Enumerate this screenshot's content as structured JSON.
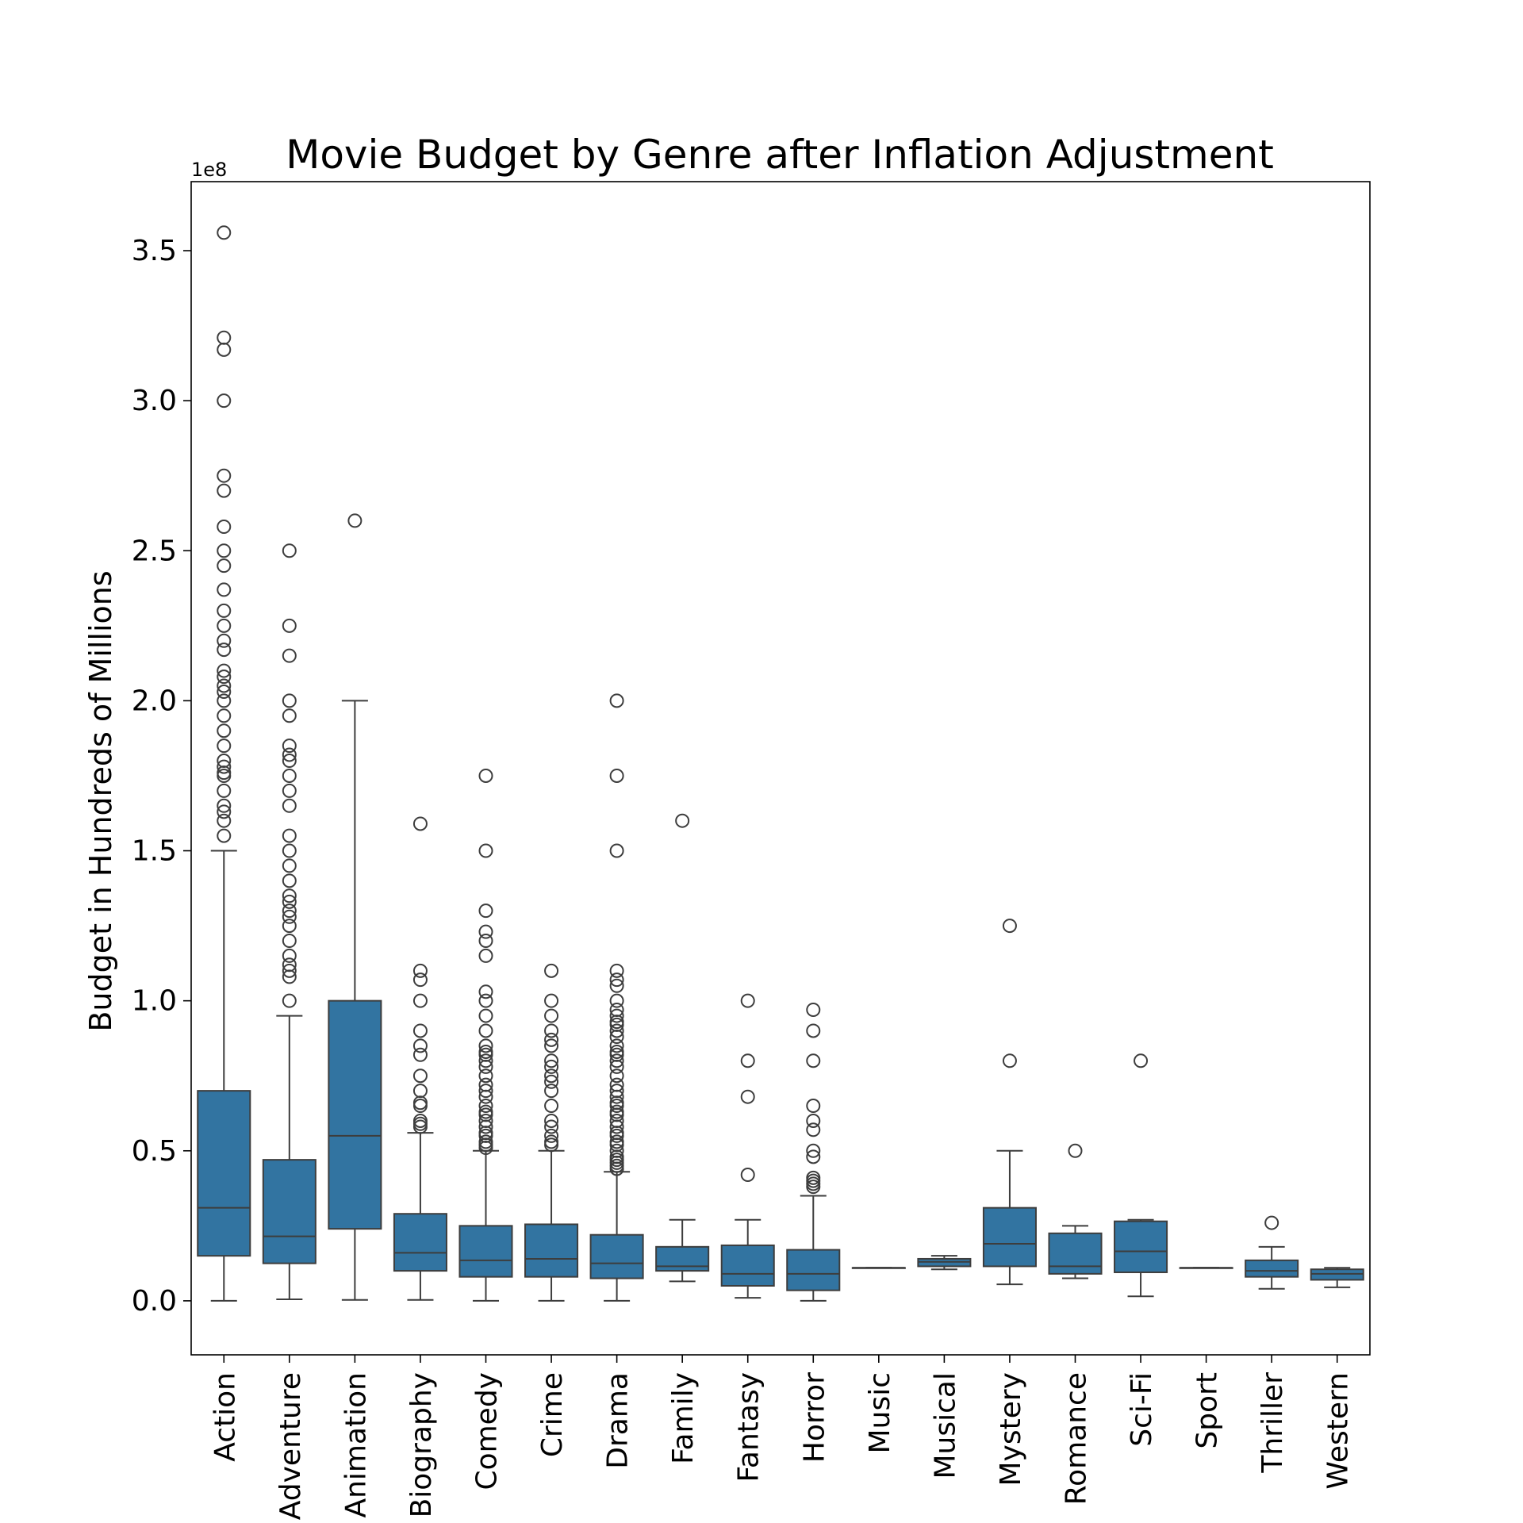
{
  "chart_data": {
    "type": "box",
    "title": "Movie Budget by Genre after Inflation Adjustment",
    "xlabel": "",
    "ylabel": "Budget in Hundreds of Millions",
    "y_offset_label": "1e8",
    "y_scale": 100000000,
    "ylim": [
      -0.18,
      3.73
    ],
    "yticks": [
      0.0,
      0.5,
      1.0,
      1.5,
      2.0,
      2.5,
      3.0,
      3.5
    ],
    "ytick_labels": [
      "0.0",
      "0.5",
      "1.0",
      "1.5",
      "2.0",
      "2.5",
      "3.0",
      "3.5"
    ],
    "grid": false,
    "box_color": "#3274a1",
    "line_color": "#3d3d3d",
    "categories": [
      "Action",
      "Adventure",
      "Animation",
      "Biography",
      "Comedy",
      "Crime",
      "Drama",
      "Family",
      "Fantasy",
      "Horror",
      "Music",
      "Musical",
      "Mystery",
      "Romance",
      "Sci-Fi",
      "Sport",
      "Thriller",
      "Western"
    ],
    "series": [
      {
        "category": "Action",
        "whisker_low": 0.0,
        "q1": 0.15,
        "median": 0.31,
        "q3": 0.7,
        "whisker_high": 1.5,
        "outliers": [
          3.56,
          3.21,
          3.17,
          3.0,
          2.75,
          2.7,
          2.58,
          2.5,
          2.45,
          2.37,
          2.3,
          2.25,
          2.2,
          2.17,
          2.1,
          2.08,
          2.05,
          2.03,
          2.0,
          1.95,
          1.9,
          1.85,
          1.8,
          1.78,
          1.76,
          1.75,
          1.7,
          1.65,
          1.63,
          1.6,
          1.55
        ]
      },
      {
        "category": "Adventure",
        "whisker_low": 0.005,
        "q1": 0.125,
        "median": 0.215,
        "q3": 0.47,
        "whisker_high": 0.95,
        "outliers": [
          2.5,
          2.25,
          2.15,
          2.0,
          1.95,
          1.85,
          1.82,
          1.8,
          1.75,
          1.7,
          1.65,
          1.55,
          1.5,
          1.45,
          1.4,
          1.35,
          1.33,
          1.3,
          1.28,
          1.25,
          1.2,
          1.15,
          1.12,
          1.1,
          1.08,
          1.0
        ]
      },
      {
        "category": "Animation",
        "whisker_low": 0.003,
        "q1": 0.24,
        "median": 0.55,
        "q3": 1.0,
        "whisker_high": 2.0,
        "outliers": [
          2.6
        ]
      },
      {
        "category": "Biography",
        "whisker_low": 0.003,
        "q1": 0.1,
        "median": 0.16,
        "q3": 0.29,
        "whisker_high": 0.56,
        "outliers": [
          1.59,
          1.1,
          1.07,
          1.0,
          0.9,
          0.85,
          0.82,
          0.75,
          0.7,
          0.66,
          0.65,
          0.6,
          0.59,
          0.58
        ]
      },
      {
        "category": "Comedy",
        "whisker_low": 0.0,
        "q1": 0.08,
        "median": 0.135,
        "q3": 0.25,
        "whisker_high": 0.5,
        "outliers": [
          1.75,
          1.5,
          1.3,
          1.23,
          1.2,
          1.15,
          1.03,
          1.0,
          0.95,
          0.9,
          0.85,
          0.83,
          0.82,
          0.8,
          0.78,
          0.75,
          0.72,
          0.7,
          0.68,
          0.65,
          0.63,
          0.62,
          0.6,
          0.58,
          0.56,
          0.55,
          0.53,
          0.52,
          0.51
        ]
      },
      {
        "category": "Crime",
        "whisker_low": 0.0,
        "q1": 0.08,
        "median": 0.14,
        "q3": 0.255,
        "whisker_high": 0.5,
        "outliers": [
          1.1,
          1.0,
          0.95,
          0.9,
          0.87,
          0.85,
          0.8,
          0.78,
          0.75,
          0.73,
          0.7,
          0.65,
          0.6,
          0.58,
          0.55,
          0.53,
          0.52
        ]
      },
      {
        "category": "Drama",
        "whisker_low": 0.0,
        "q1": 0.075,
        "median": 0.125,
        "q3": 0.22,
        "whisker_high": 0.43,
        "outliers": [
          2.0,
          1.75,
          1.5,
          1.1,
          1.07,
          1.05,
          1.0,
          0.97,
          0.95,
          0.93,
          0.92,
          0.9,
          0.88,
          0.85,
          0.83,
          0.82,
          0.8,
          0.78,
          0.75,
          0.72,
          0.7,
          0.68,
          0.66,
          0.65,
          0.63,
          0.62,
          0.6,
          0.58,
          0.56,
          0.55,
          0.53,
          0.52,
          0.5,
          0.48,
          0.47,
          0.46,
          0.45,
          0.44
        ]
      },
      {
        "category": "Family",
        "whisker_low": 0.065,
        "q1": 0.1,
        "median": 0.115,
        "q3": 0.18,
        "whisker_high": 0.27,
        "outliers": [
          1.6
        ]
      },
      {
        "category": "Fantasy",
        "whisker_low": 0.01,
        "q1": 0.05,
        "median": 0.09,
        "q3": 0.185,
        "whisker_high": 0.27,
        "outliers": [
          1.0,
          0.8,
          0.68,
          0.42
        ]
      },
      {
        "category": "Horror",
        "whisker_low": 0.0,
        "q1": 0.035,
        "median": 0.09,
        "q3": 0.17,
        "whisker_high": 0.35,
        "outliers": [
          0.97,
          0.9,
          0.8,
          0.65,
          0.6,
          0.57,
          0.5,
          0.48,
          0.41,
          0.4,
          0.39,
          0.38
        ]
      },
      {
        "category": "Music",
        "whisker_low": 0.11,
        "q1": 0.11,
        "median": 0.11,
        "q3": 0.11,
        "whisker_high": 0.11,
        "outliers": []
      },
      {
        "category": "Musical",
        "whisker_low": 0.105,
        "q1": 0.115,
        "median": 0.13,
        "q3": 0.14,
        "whisker_high": 0.15,
        "outliers": []
      },
      {
        "category": "Mystery",
        "whisker_low": 0.055,
        "q1": 0.115,
        "median": 0.19,
        "q3": 0.31,
        "whisker_high": 0.5,
        "outliers": [
          1.25,
          0.8
        ]
      },
      {
        "category": "Romance",
        "whisker_low": 0.075,
        "q1": 0.09,
        "median": 0.115,
        "q3": 0.225,
        "whisker_high": 0.25,
        "outliers": [
          0.5
        ]
      },
      {
        "category": "Sci-Fi",
        "whisker_low": 0.015,
        "q1": 0.095,
        "median": 0.165,
        "q3": 0.265,
        "whisker_high": 0.27,
        "outliers": [
          0.8
        ]
      },
      {
        "category": "Sport",
        "whisker_low": 0.11,
        "q1": 0.11,
        "median": 0.11,
        "q3": 0.11,
        "whisker_high": 0.11,
        "outliers": []
      },
      {
        "category": "Thriller",
        "whisker_low": 0.04,
        "q1": 0.08,
        "median": 0.1,
        "q3": 0.135,
        "whisker_high": 0.18,
        "outliers": [
          0.26
        ]
      },
      {
        "category": "Western",
        "whisker_low": 0.045,
        "q1": 0.07,
        "median": 0.09,
        "q3": 0.105,
        "whisker_high": 0.11,
        "outliers": []
      }
    ]
  }
}
